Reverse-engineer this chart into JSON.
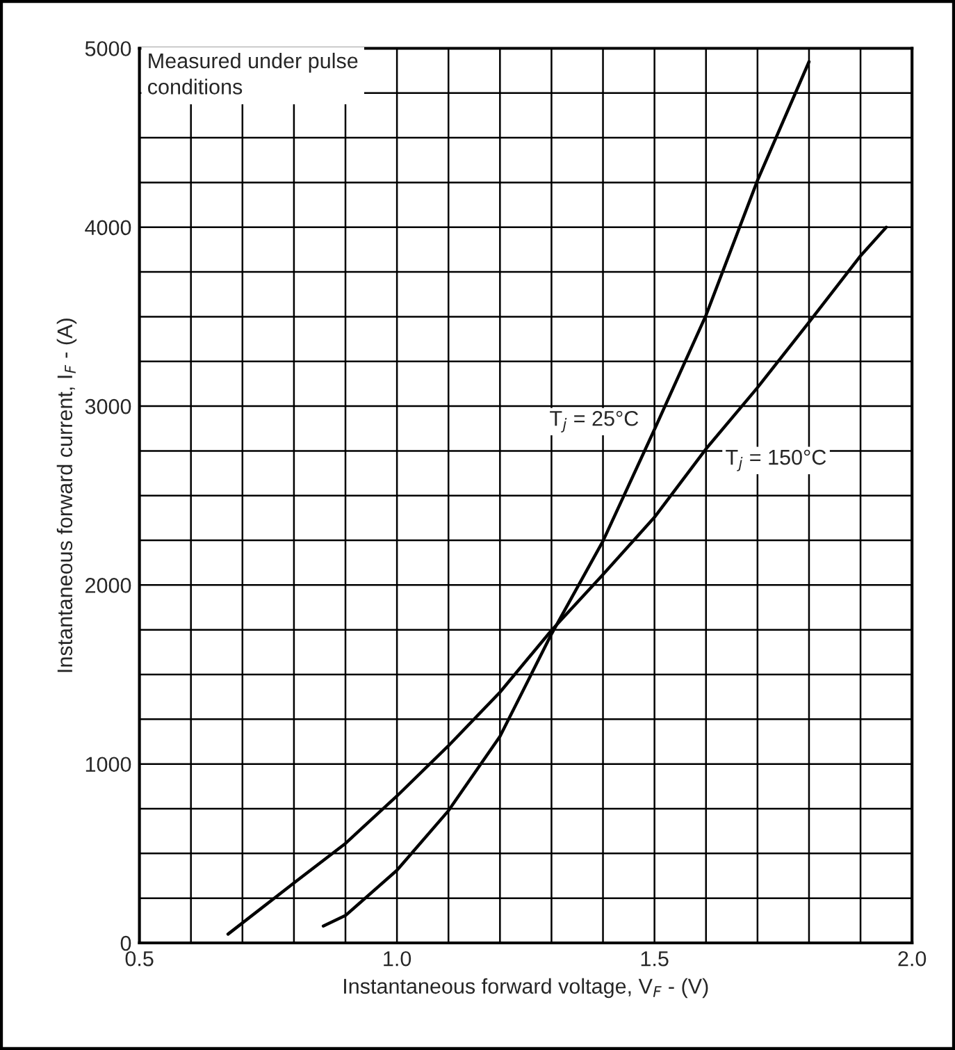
{
  "chart_data": {
    "type": "line",
    "xlabel": "Instantaneous forward voltage, V$_{F}$ - (V)",
    "ylabel": "Instantaneous forward current, I$_{F}$ - (A)",
    "series": [
      {
        "name": "T$_{j}$ = 25°C",
        "color": "#000000",
        "x": [
          0.857,
          0.9,
          1.0,
          1.1,
          1.2,
          1.3,
          1.4,
          1.5,
          1.6,
          1.7,
          1.8
        ],
        "values": [
          94,
          153,
          406,
          739,
          1154,
          1726,
          2246,
          2870,
          3508,
          4262,
          4925
        ]
      },
      {
        "name": "T$_{j}$ = 150°C",
        "color": "#000000",
        "x": [
          0.672,
          0.8,
          0.9,
          1.0,
          1.1,
          1.2,
          1.3,
          1.4,
          1.5,
          1.6,
          1.7,
          1.8,
          1.9,
          1.95
        ],
        "values": [
          49,
          335,
          556,
          821,
          1102,
          1401,
          1747,
          2059,
          2379,
          2761,
          3104,
          3469,
          3840,
          4000
        ]
      }
    ],
    "xlim": [
      0.5,
      2.0
    ],
    "xticks": [
      0.5,
      {
        "value": 0.6,
        "label": null
      },
      {
        "value": 0.7,
        "label": null
      },
      {
        "value": 0.8,
        "label": null
      },
      {
        "value": 0.9,
        "label": null
      },
      {
        "value": 1.0,
        "label": "1.0"
      },
      {
        "value": 1.1,
        "label": null
      },
      {
        "value": 1.2,
        "label": null
      },
      {
        "value": 1.3,
        "label": null
      },
      {
        "value": 1.4,
        "label": null
      },
      1.5,
      {
        "value": 1.6,
        "label": null
      },
      {
        "value": 1.7,
        "label": null
      },
      {
        "value": 1.8,
        "label": null
      },
      {
        "value": 1.9,
        "label": null
      },
      {
        "value": 2.0,
        "label": "2.0"
      }
    ],
    "ylim": [
      0,
      5000
    ],
    "yticks": [
      0,
      {
        "value": 250,
        "label": null
      },
      {
        "value": 500,
        "label": null
      },
      {
        "value": 750,
        "label": null
      },
      1000,
      {
        "value": 1250,
        "label": null
      },
      {
        "value": 1500,
        "label": null
      },
      {
        "value": 1750,
        "label": null
      },
      2000,
      {
        "value": 2250,
        "label": null
      },
      {
        "value": 2500,
        "label": null
      },
      {
        "value": 2750,
        "label": null
      },
      3000,
      {
        "value": 3250,
        "label": null
      },
      {
        "value": 3500,
        "label": null
      },
      {
        "value": 3750,
        "label": null
      },
      4000,
      {
        "value": 4250,
        "label": null
      },
      {
        "value": 4500,
        "label": null
      },
      {
        "value": 4750,
        "label": null
      },
      5000
    ],
    "grid": true,
    "legend": false,
    "marker": "none",
    "line_style": "solid",
    "annotations": [
      "Measured under pulse\nconditions"
    ]
  }
}
